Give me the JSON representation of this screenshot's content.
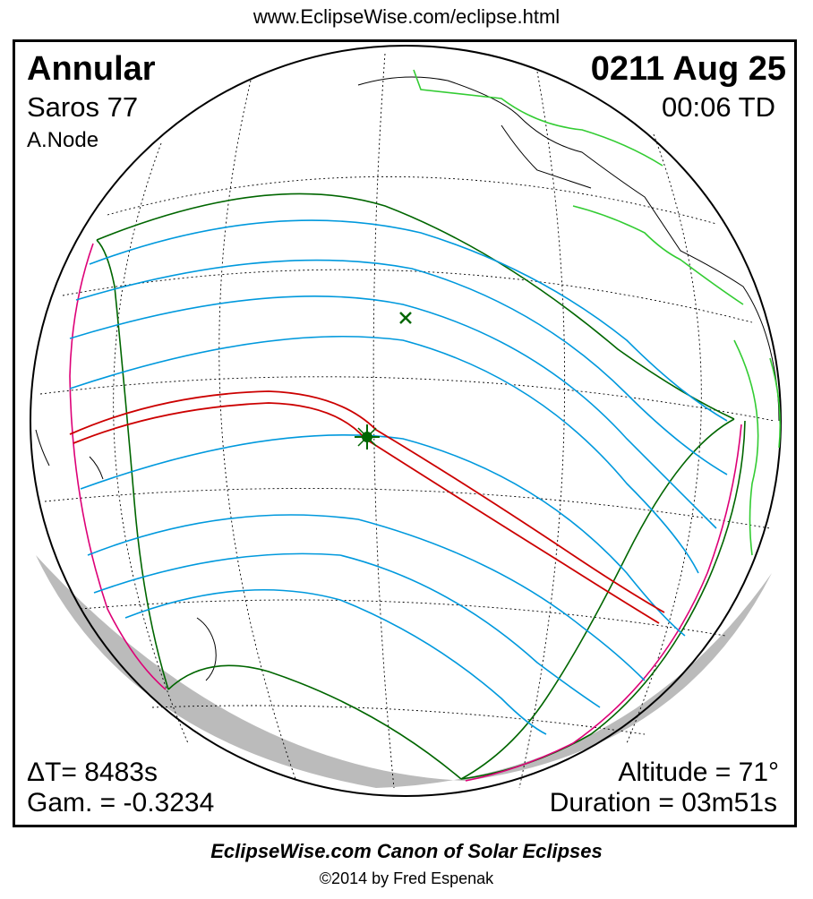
{
  "header": {
    "url": "www.EclipseWise.com/eclipse.html"
  },
  "eclipse": {
    "type": "Annular",
    "saros_label": "Saros  77",
    "node": "A.Node",
    "date": "0211 Aug 25",
    "time": "00:06 TD",
    "delta_t": "ΔT=   8483s",
    "gamma": "Gam. = -0.3234",
    "altitude": "Altitude = 71°",
    "duration": "Duration = 03m51s"
  },
  "footer": {
    "title": "EclipseWise.com Canon of Solar Eclipses",
    "copyright": "©2014 by Fred Espenak"
  },
  "colors": {
    "central_path": "#cc0000",
    "penumbral_limits": "#006600",
    "partial_lines": "#0099dd",
    "rise_set_curves": "#dd0077",
    "coastlines_borders": "#33cc33",
    "shadow_edge": "#bbbbbb"
  },
  "markers": [
    "greatest-eclipse-marker",
    "subsolar-point-marker"
  ]
}
